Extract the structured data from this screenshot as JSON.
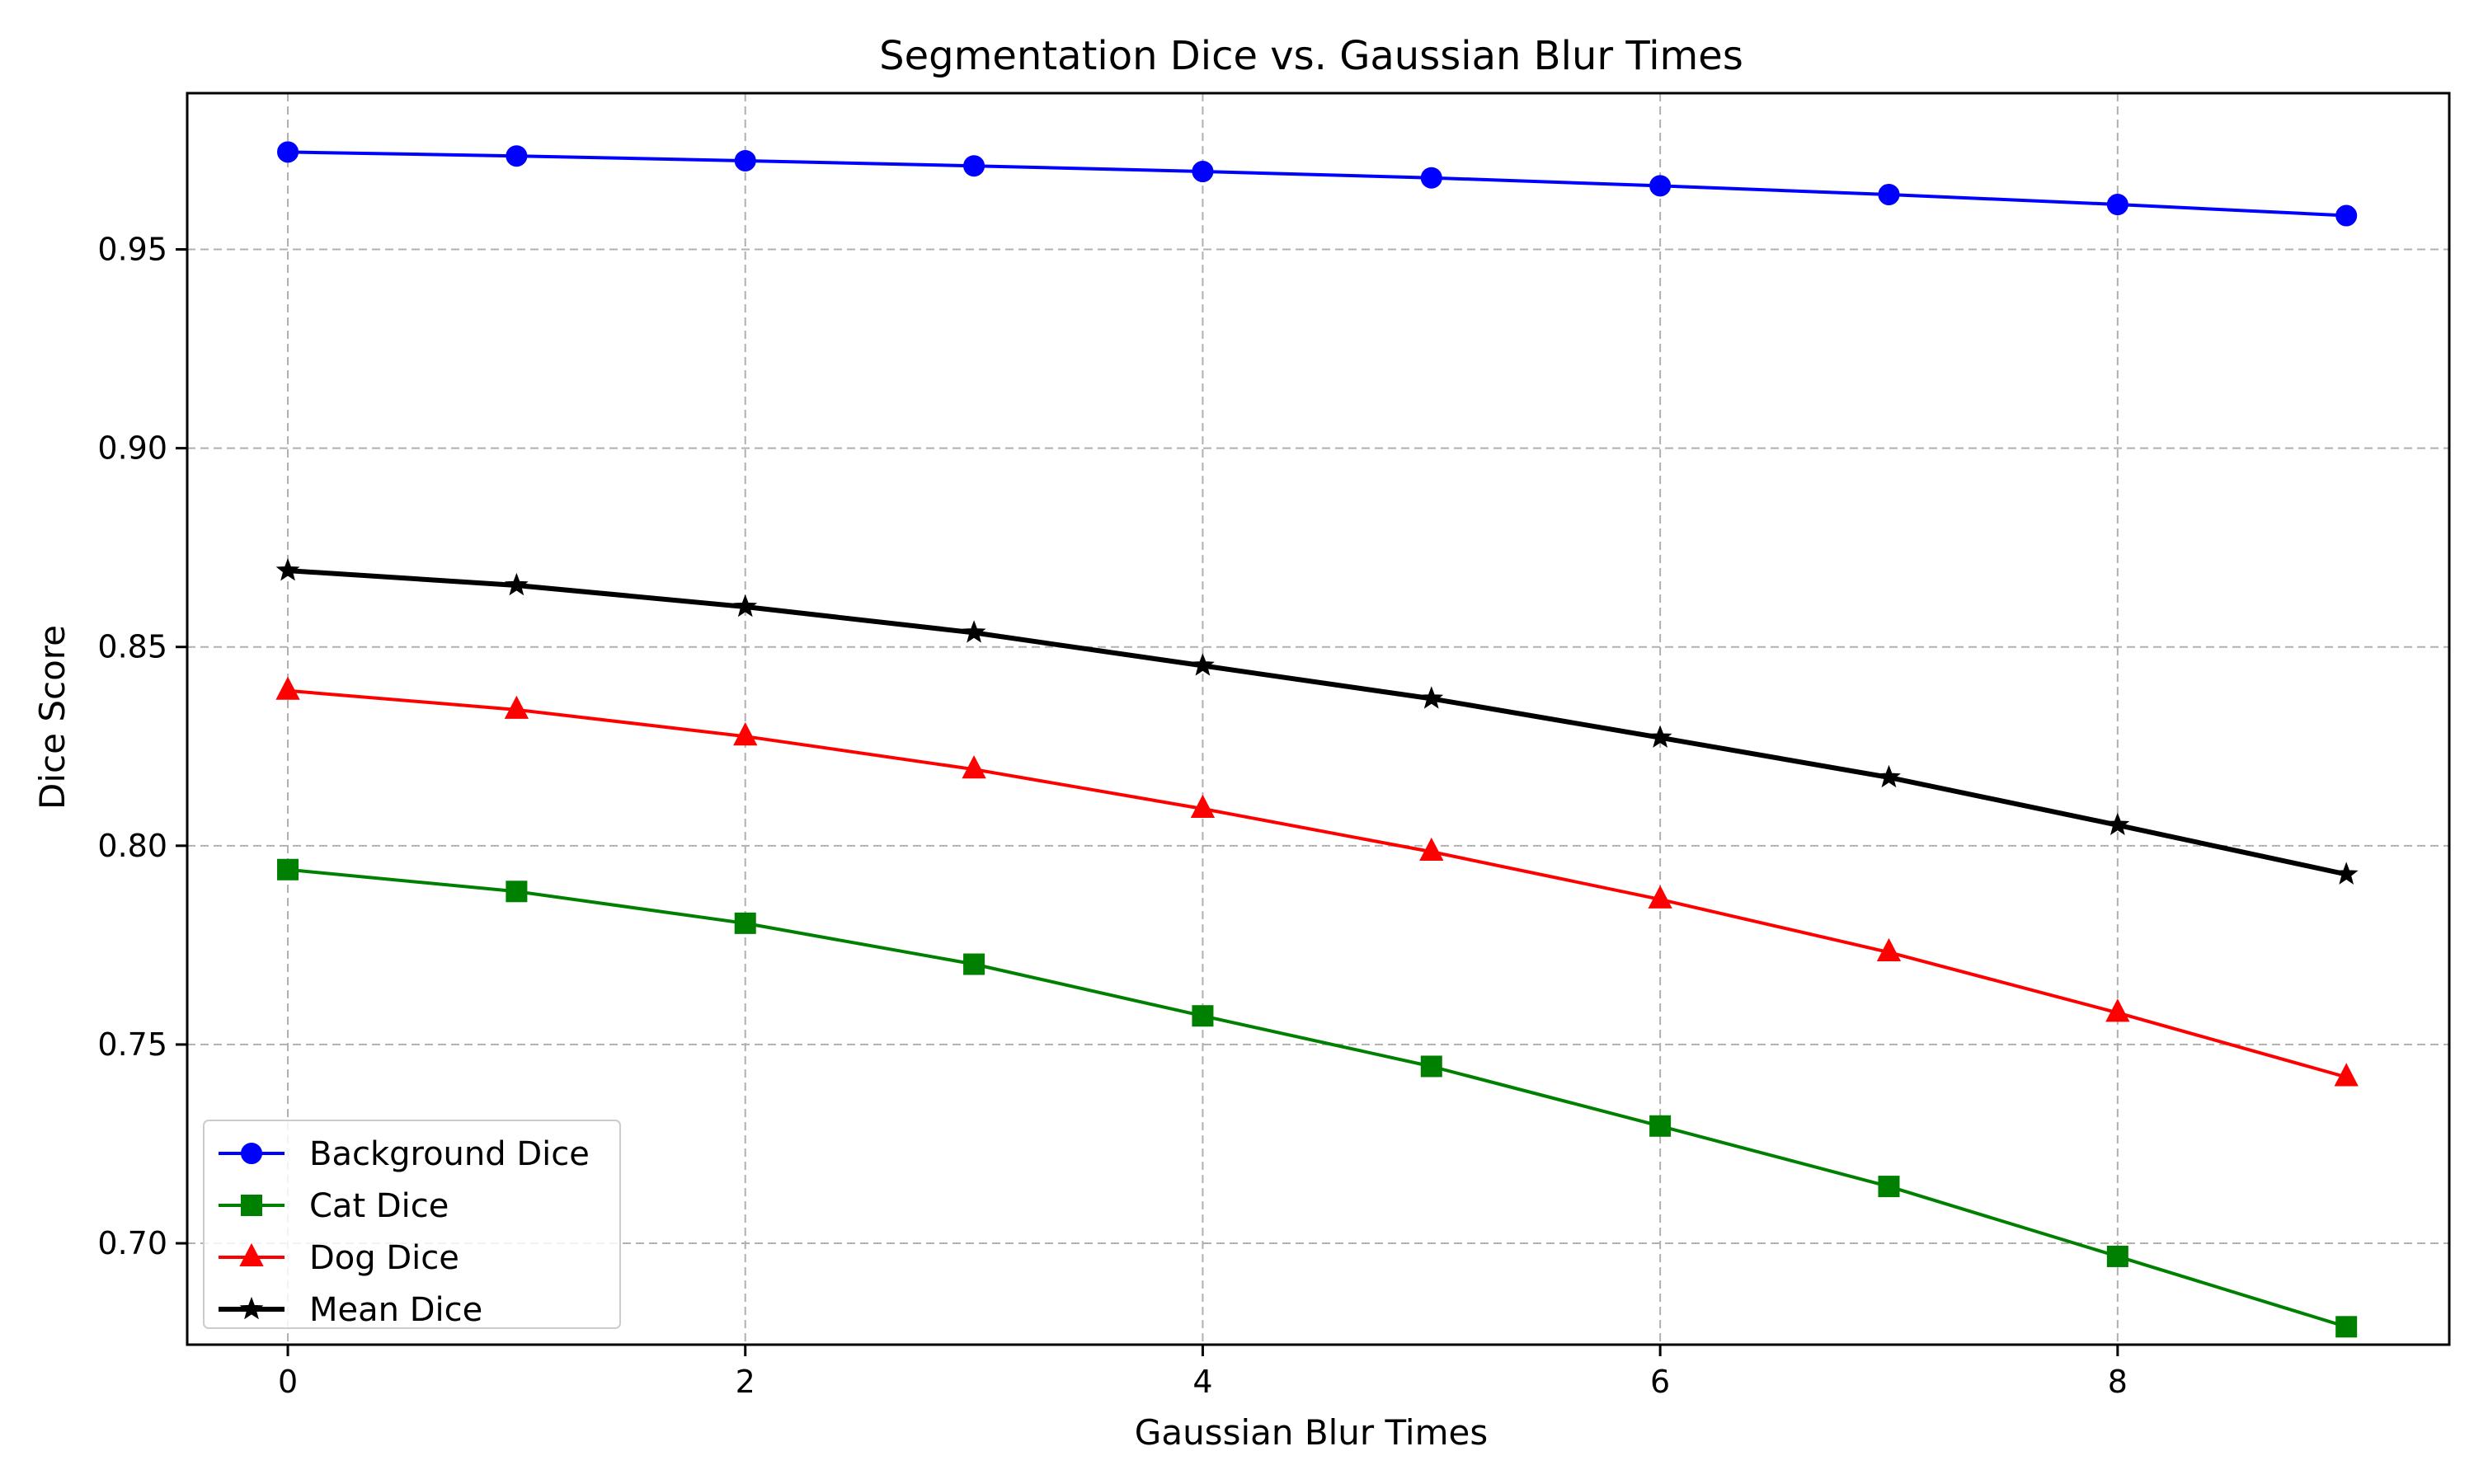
{
  "chart_data": {
    "type": "line",
    "title": "Segmentation Dice vs. Gaussian Blur Times",
    "xlabel": "Gaussian Blur Times",
    "ylabel": "Dice Score",
    "x": [
      0,
      1,
      2,
      3,
      4,
      5,
      6,
      7,
      8,
      9
    ],
    "xlim": [
      -0.44,
      9.45
    ],
    "ylim": [
      0.6745,
      0.9893
    ],
    "xticks": [
      0,
      2,
      4,
      6,
      8
    ],
    "xtick_labels": [
      "0",
      "2",
      "4",
      "6",
      "8"
    ],
    "yticks": [
      0.7,
      0.75,
      0.8,
      0.85,
      0.9,
      0.95
    ],
    "ytick_labels": [
      "0.70",
      "0.75",
      "0.80",
      "0.85",
      "0.90",
      "0.95"
    ],
    "grid": true,
    "legend_position": "lower-left",
    "series": [
      {
        "name": "Background Dice",
        "color": "#0000ff",
        "marker": "circle",
        "values": [
          0.9745,
          0.9735,
          0.9723,
          0.971,
          0.9696,
          0.968,
          0.966,
          0.9638,
          0.9613,
          0.9585
        ]
      },
      {
        "name": "Cat Dice",
        "color": "#008000",
        "marker": "square",
        "values": [
          0.794,
          0.7885,
          0.7805,
          0.7702,
          0.7572,
          0.7445,
          0.7295,
          0.7143,
          0.6967,
          0.679
        ]
      },
      {
        "name": "Dog Dice",
        "color": "#ff0000",
        "marker": "triangle",
        "values": [
          0.839,
          0.8342,
          0.8275,
          0.8192,
          0.8093,
          0.7985,
          0.7865,
          0.7732,
          0.758,
          0.7418
        ]
      },
      {
        "name": "Mean Dice",
        "color": "#000000",
        "marker": "star",
        "values": [
          0.8692,
          0.8655,
          0.8601,
          0.8536,
          0.8453,
          0.837,
          0.8272,
          0.8172,
          0.8052,
          0.7928
        ]
      }
    ]
  }
}
